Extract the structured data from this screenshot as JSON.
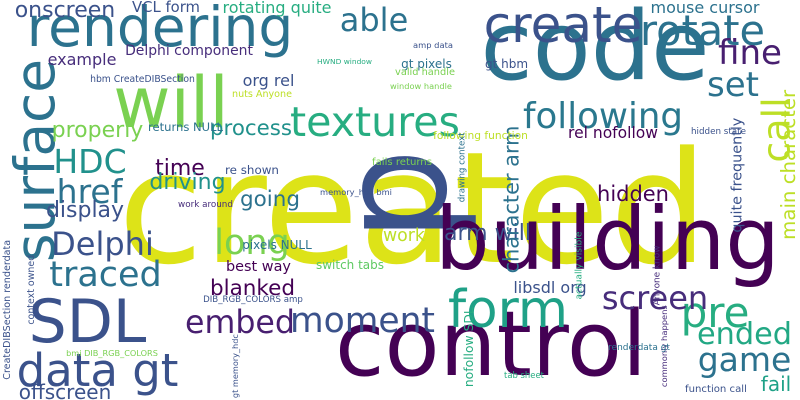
{
  "words": [
    {
      "text": "created",
      "color": "#dde318"
    },
    {
      "text": "p",
      "color": "#3b528b"
    },
    {
      "text": "control",
      "color": "#440154"
    },
    {
      "text": "code",
      "color": "#2c728e"
    },
    {
      "text": "building",
      "color": "#440154"
    },
    {
      "text": "will",
      "color": "#7ad151"
    },
    {
      "text": "create",
      "color": "#3b528b"
    },
    {
      "text": "rendering",
      "color": "#2c728e"
    },
    {
      "text": "surface",
      "color": "#2c728e"
    },
    {
      "text": "SDL",
      "color": "#3b528b"
    },
    {
      "text": "form",
      "color": "#1fa187"
    },
    {
      "text": "textures",
      "color": "#27ad81"
    },
    {
      "text": "rotate",
      "color": "#2c728e"
    },
    {
      "text": "data gt",
      "color": "#3b528b"
    },
    {
      "text": "pre",
      "color": "#27ad81"
    },
    {
      "text": "following",
      "color": "#2a788e"
    },
    {
      "text": "able",
      "color": "#2c728e"
    },
    {
      "text": "moment",
      "color": "#3b528b"
    },
    {
      "text": "embed",
      "color": "#481f70"
    },
    {
      "text": "screen",
      "color": "#472d7b"
    },
    {
      "text": "Delphi",
      "color": "#3b528b"
    },
    {
      "text": "traced",
      "color": "#2c728e"
    },
    {
      "text": "HDC",
      "color": "#21918c"
    },
    {
      "text": "href",
      "color": "#2c728e"
    },
    {
      "text": "game",
      "color": "#2c728e"
    },
    {
      "text": "ended",
      "color": "#22a884"
    },
    {
      "text": "long",
      "color": "#7ad151"
    },
    {
      "text": "blanked",
      "color": "#440154"
    },
    {
      "text": "fine",
      "color": "#481f70"
    },
    {
      "text": "set",
      "color": "#2c728e"
    },
    {
      "text": "call",
      "color": "#bddf26"
    },
    {
      "text": "onscreen",
      "color": "#3b528b"
    },
    {
      "text": "offscreen",
      "color": "#3b528b"
    },
    {
      "text": "properly",
      "color": "#7ad151"
    },
    {
      "text": "process",
      "color": "#21918c"
    },
    {
      "text": "time",
      "color": "#440154"
    },
    {
      "text": "driving",
      "color": "#21918c"
    },
    {
      "text": "display",
      "color": "#3b528b"
    },
    {
      "text": "going",
      "color": "#2c728e"
    },
    {
      "text": "hidden",
      "color": "#440154"
    },
    {
      "text": "work",
      "color": "#bddf26"
    },
    {
      "text": "arm will",
      "color": "#3b528b"
    },
    {
      "text": "character arm",
      "color": "#2c728e"
    },
    {
      "text": "example",
      "color": "#472d7b"
    },
    {
      "text": "fail",
      "color": "#1fa187"
    },
    {
      "text": "mouse cursor",
      "color": "#2c728e"
    },
    {
      "text": "main character",
      "color": "#bddf26"
    },
    {
      "text": "quite frequently",
      "color": "#3b528b"
    },
    {
      "text": "Delphi component",
      "color": "#472d7b"
    },
    {
      "text": "VCL form",
      "color": "#3b528b"
    },
    {
      "text": "rotating quite",
      "color": "#27ad81"
    },
    {
      "text": "org rel",
      "color": "#3b528b"
    },
    {
      "text": "best way",
      "color": "#440154"
    },
    {
      "text": "libsdl org",
      "color": "#3b528b"
    },
    {
      "text": "nofollow SDL",
      "color": "#27ad81"
    },
    {
      "text": "DIB_RGB_COLORS amp",
      "color": "#3b528b"
    },
    {
      "text": "rel nofollow",
      "color": "#440154"
    },
    {
      "text": "hbm CreateDIBSection",
      "color": "#3b528b"
    },
    {
      "text": "returns NULL",
      "color": "#2c728e"
    },
    {
      "text": "re shown",
      "color": "#3b528b"
    },
    {
      "text": "work around",
      "color": "#472d7b"
    },
    {
      "text": "pixels NULL",
      "color": "#2c728e"
    },
    {
      "text": "memory_hdc bmi",
      "color": "#3b528b"
    },
    {
      "text": "switch tabs",
      "color": "#5ec962"
    },
    {
      "text": "gt memory_hdc",
      "color": "#3b528b"
    },
    {
      "text": "amp data",
      "color": "#3b528b"
    },
    {
      "text": "gt hbm",
      "color": "#3b528b"
    },
    {
      "text": "gt pixels",
      "color": "#2c728e"
    },
    {
      "text": "HWND window",
      "color": "#27ad81"
    },
    {
      "text": "valid handle",
      "color": "#7ad151"
    },
    {
      "text": "window handle",
      "color": "#7ad151"
    },
    {
      "text": "nuts Anyone",
      "color": "#bddf26"
    },
    {
      "text": "following function",
      "color": "#bddf26"
    },
    {
      "text": "hidden state",
      "color": "#3b528b"
    },
    {
      "text": "drawing context",
      "color": "#2c728e"
    },
    {
      "text": "fails returns",
      "color": "#7ad151"
    },
    {
      "text": "actually visible",
      "color": "#27ad81"
    },
    {
      "text": "Anyone know",
      "color": "#472d7b"
    },
    {
      "text": "commonly happens",
      "color": "#472d7b"
    },
    {
      "text": "renderdata gt",
      "color": "#2c728e"
    },
    {
      "text": "tab sheet",
      "color": "#27ad81"
    },
    {
      "text": "function call",
      "color": "#3b528b"
    },
    {
      "text": "context owned",
      "color": "#3b528b"
    },
    {
      "text": "CreateDIBSection renderdata",
      "color": "#3b528b"
    },
    {
      "text": "bmi DIB_RGB_COLORS",
      "color": "#7ad151"
    }
  ]
}
